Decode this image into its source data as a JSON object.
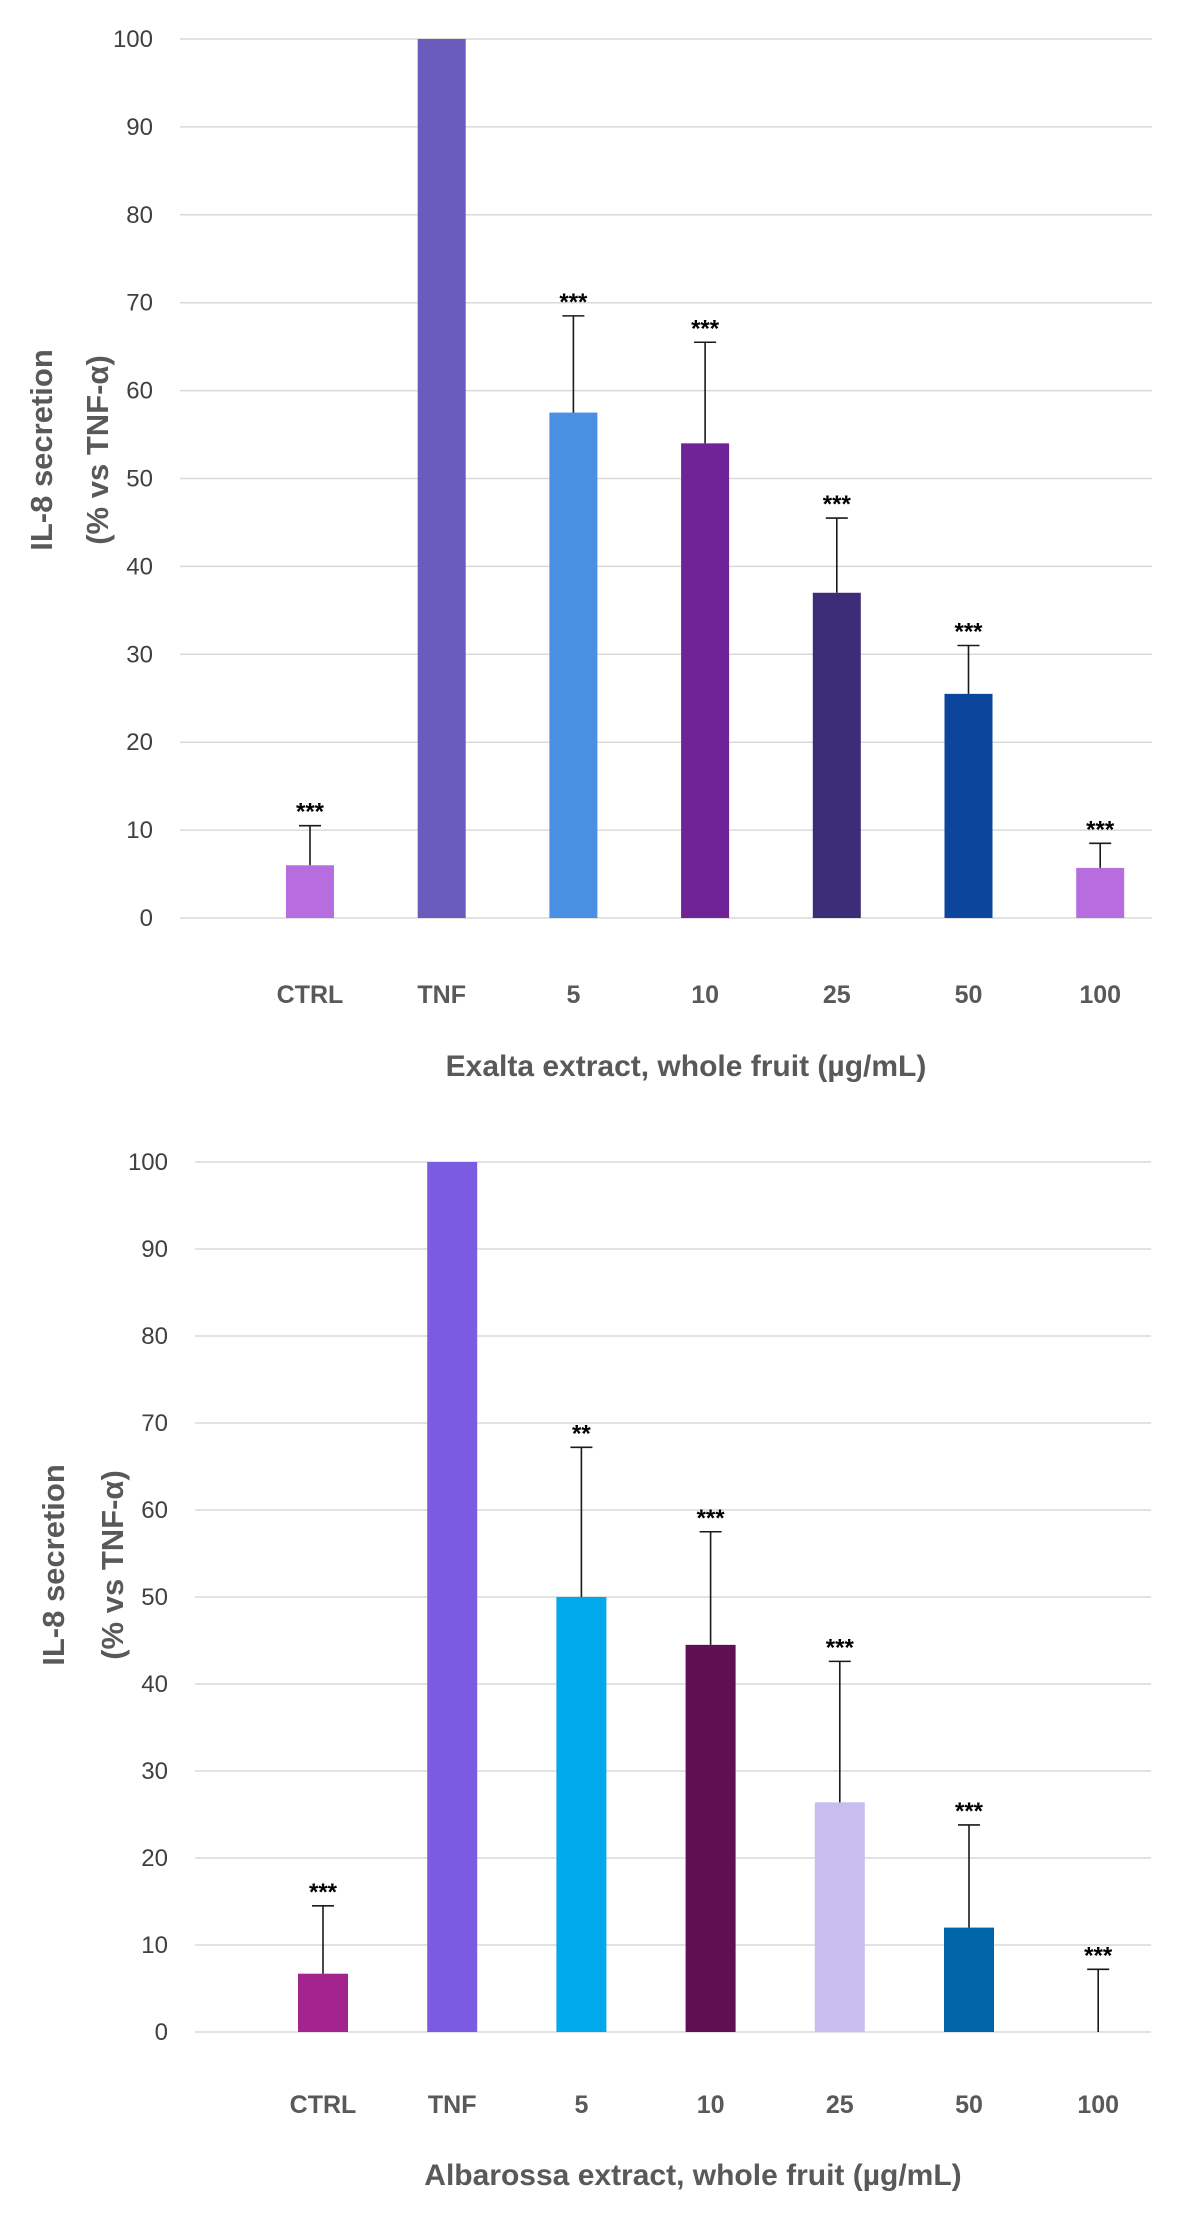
{
  "chart_data": [
    {
      "type": "bar",
      "title": "",
      "xlabel": "Exalta extract, whole fruit (µg/mL)",
      "ylabel_lines": [
        "IL-8 secretion",
        "(% vs TNF-α)"
      ],
      "ylim": [
        0,
        100
      ],
      "yticks": [
        0,
        10,
        20,
        30,
        40,
        50,
        60,
        70,
        80,
        90,
        100
      ],
      "grid": true,
      "categories": [
        "CTRL",
        "TNF",
        "5",
        "10",
        "25",
        "50",
        "100"
      ],
      "values": [
        6,
        100,
        57.5,
        54,
        37,
        25.5,
        5.7
      ],
      "errors": [
        4.5,
        0,
        11,
        11.5,
        8.5,
        5.5,
        2.8
      ],
      "significance": [
        "***",
        "",
        "***",
        "***",
        "***",
        "***",
        "***"
      ],
      "colors": [
        "#b76ddf",
        "#6a5cbc",
        "#4a90e2",
        "#6f2396",
        "#3c2d78",
        "#0b469c",
        "#b76ddf"
      ]
    },
    {
      "type": "bar",
      "title": "",
      "xlabel": "Albarossa extract, whole fruit (µg/mL)",
      "ylabel_lines": [
        "IL-8 secretion",
        "(% vs TNF-α)"
      ],
      "ylim": [
        0,
        100
      ],
      "yticks": [
        0,
        10,
        20,
        30,
        40,
        50,
        60,
        70,
        80,
        90,
        100
      ],
      "grid": true,
      "categories": [
        "CTRL",
        "TNF",
        "5",
        "10",
        "25",
        "50",
        "100"
      ],
      "values": [
        6.7,
        100,
        50,
        44.5,
        26.4,
        12,
        0
      ],
      "errors": [
        7.8,
        0,
        17.2,
        13,
        16.2,
        11.8,
        7.2
      ],
      "significance": [
        "***",
        "",
        "**",
        "***",
        "***",
        "***",
        "***"
      ],
      "colors": [
        "#a3238f",
        "#7b5be0",
        "#00a8ec",
        "#600f52",
        "#c9bdf0",
        "#0064a8",
        "#7b5be0"
      ]
    }
  ]
}
